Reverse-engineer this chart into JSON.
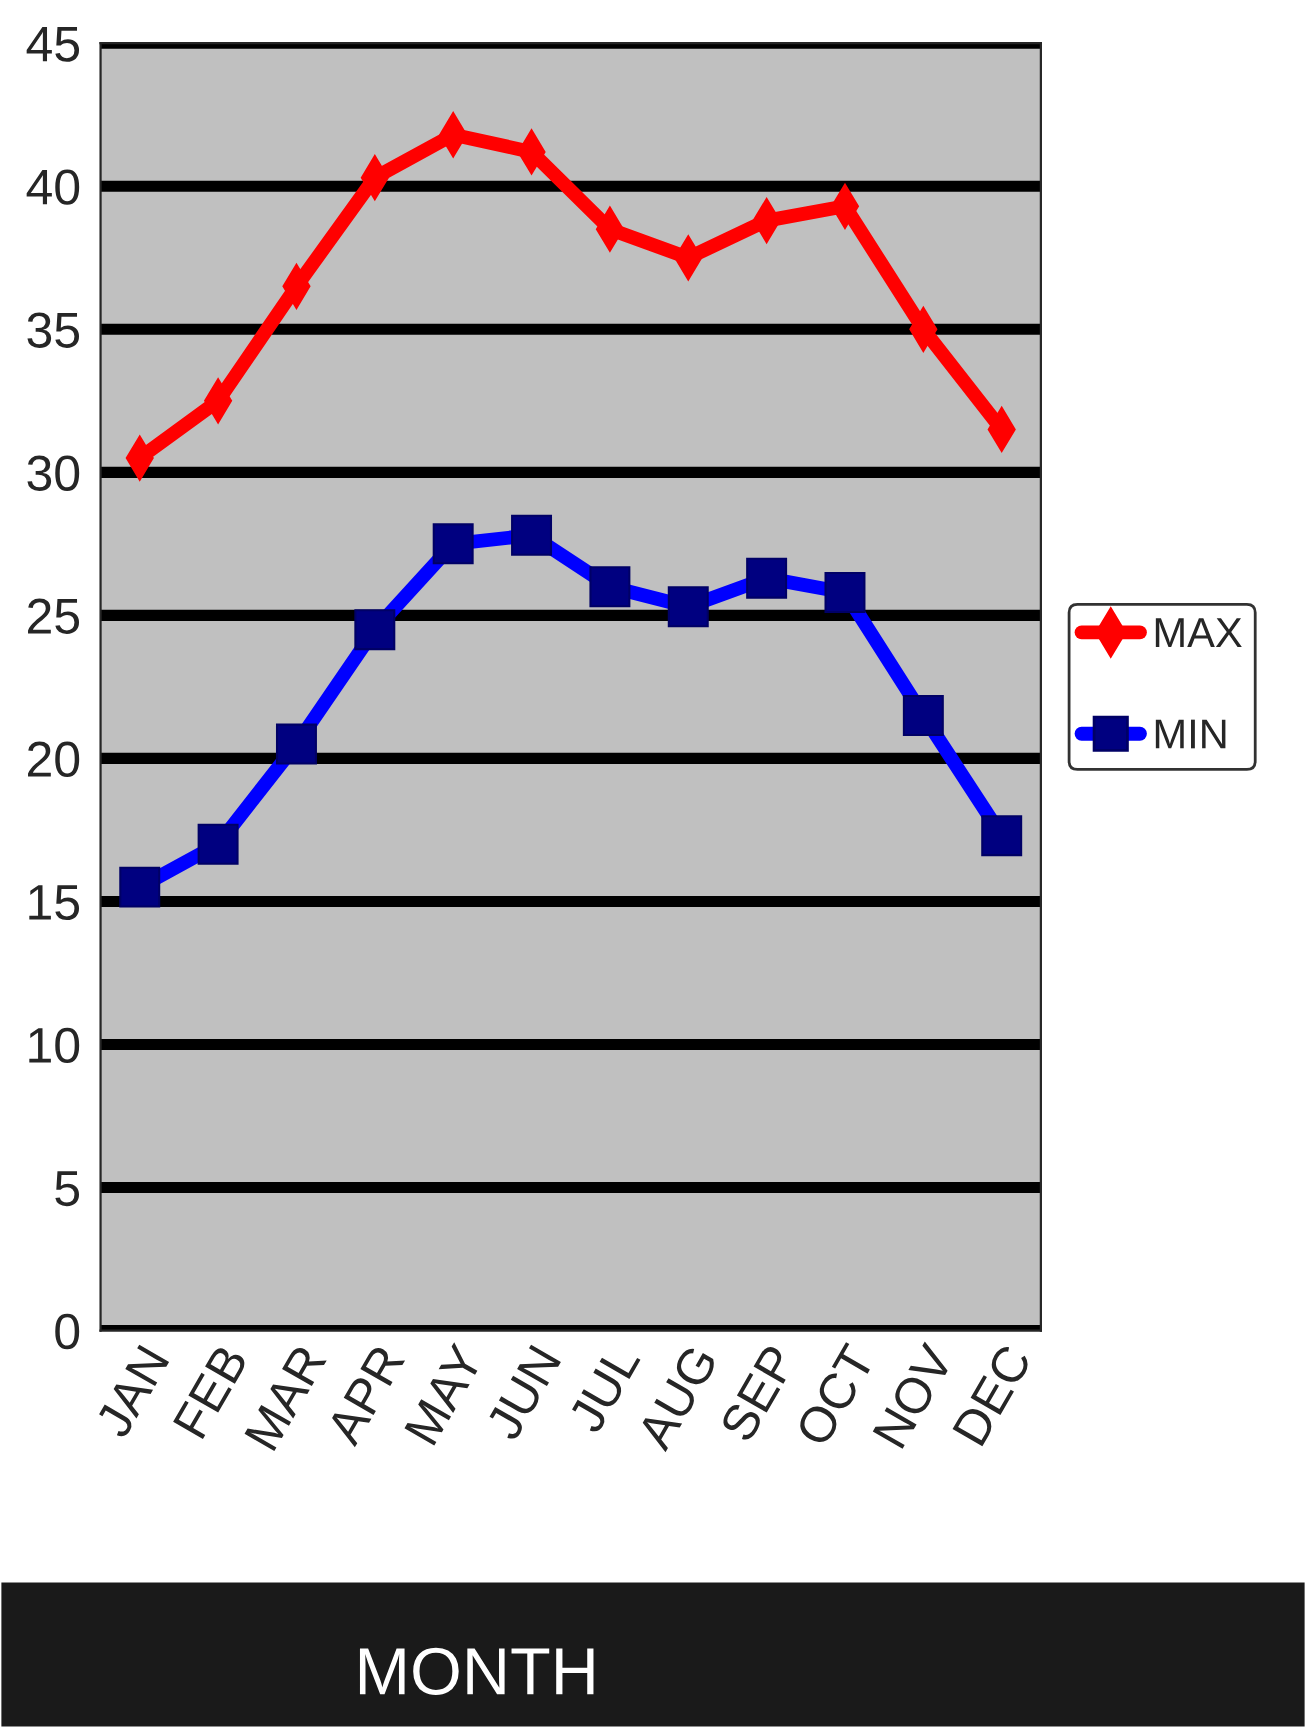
{
  "chart_data": {
    "type": "line",
    "xlabel": "MONTH",
    "categories": [
      "JAN",
      "FEB",
      "MAR",
      "APR",
      "MAY",
      "JUN",
      "JUL",
      "AUG",
      "SEP",
      "OCT",
      "NOV",
      "DEC"
    ],
    "series": [
      {
        "name": "MAX",
        "color": "#ff0000",
        "marker": "diamond",
        "values": [
          30.5,
          32.5,
          36.5,
          40.3,
          41.8,
          41.2,
          38.5,
          37.5,
          38.8,
          39.3,
          35,
          31.5
        ]
      },
      {
        "name": "MIN",
        "color": "#0000ff",
        "marker": "square",
        "values": [
          15.5,
          17,
          20.5,
          24.5,
          27.5,
          27.8,
          26,
          25.3,
          26.3,
          25.8,
          21.5,
          17.3
        ]
      }
    ],
    "ylim": [
      0,
      45
    ],
    "yticks": [
      0,
      5,
      10,
      15,
      20,
      25,
      30,
      35,
      40,
      45
    ],
    "grid": "y",
    "legend": "right",
    "line_style": "solid"
  }
}
